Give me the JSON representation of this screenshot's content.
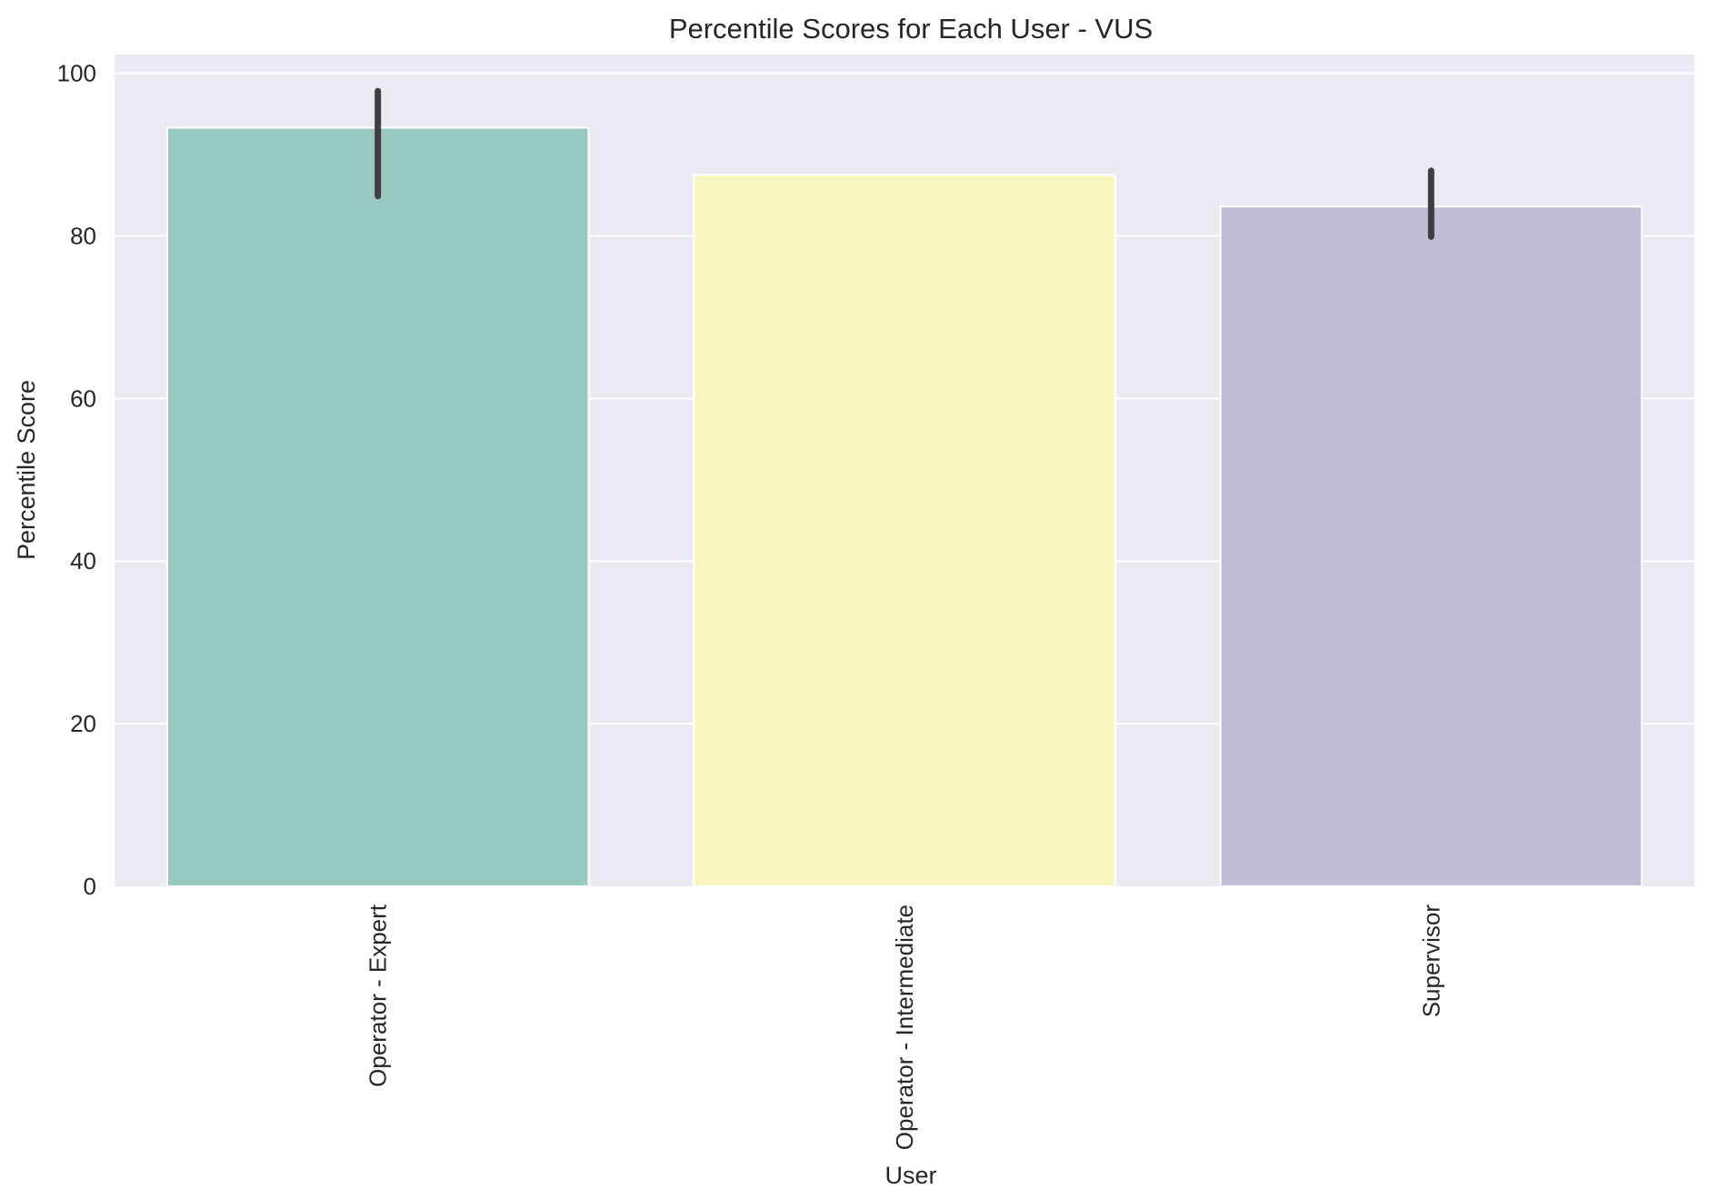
{
  "chart_data": {
    "type": "bar",
    "title": "Percentile Scores for Each User - VUS",
    "xlabel": "User",
    "ylabel": "Percentile Score",
    "categories": [
      "Operator - Expert",
      "Operator - Intermediate",
      "Supervisor"
    ],
    "values": [
      93.3,
      87.5,
      83.6
    ],
    "error_bars": [
      {
        "low": 84.9,
        "high": 97.8
      },
      {
        "low": 87.5,
        "high": 87.5
      },
      {
        "low": 79.9,
        "high": 88.0
      }
    ],
    "yticks": [
      0,
      20,
      40,
      60,
      80,
      100
    ],
    "ylim": [
      0,
      102.3
    ],
    "grid": true,
    "colors": {
      "bars": [
        "#97c9c0",
        "#f5f5bd",
        "#c2bdd6"
      ],
      "plot_background": "#eaeaf2",
      "gridline": "#ffffff",
      "error_bar": "#3f3f3f"
    }
  }
}
